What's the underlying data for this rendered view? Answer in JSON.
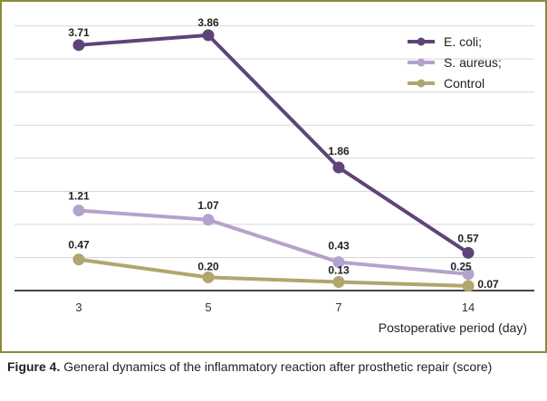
{
  "chart_data": {
    "type": "line",
    "categories": [
      "3",
      "5",
      "7",
      "14"
    ],
    "xlabel": "Postoperative period (day)",
    "ylabel": "",
    "ylim": [
      0,
      4.2
    ],
    "grid": true,
    "legend_position": "top-right",
    "series": [
      {
        "name": "E. coli;",
        "color": "#5e4479",
        "values": [
          3.71,
          3.86,
          1.86,
          0.57
        ],
        "labels": [
          "3.71",
          "3.86",
          "1.86",
          "0.57"
        ]
      },
      {
        "name": "S. aureus;",
        "color": "#b3a3cc",
        "values": [
          1.21,
          1.07,
          0.43,
          0.25
        ],
        "labels": [
          "1.21",
          "1.07",
          "0.43",
          "0.25"
        ]
      },
      {
        "name": "Control",
        "color": "#b0a66e",
        "values": [
          0.47,
          0.2,
          0.13,
          0.07
        ],
        "labels": [
          "0.47",
          "0.20",
          "0.13",
          "0.07"
        ]
      }
    ]
  },
  "caption": {
    "label": "Figure 4.",
    "text": " General dynamics of the inflammatory reaction after prosthetic repair (score)"
  }
}
